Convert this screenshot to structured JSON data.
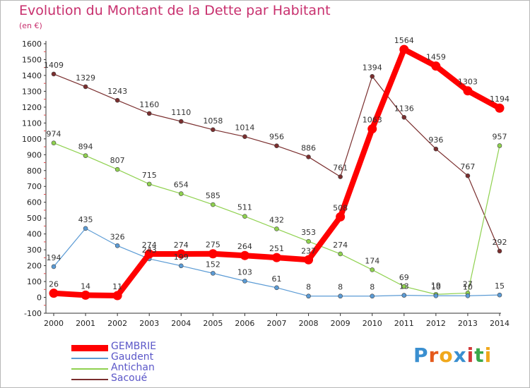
{
  "header": {
    "title": "Evolution du Montant de la Dette par Habitant",
    "unit": "(en €)"
  },
  "logo": {
    "text": "Proxiti",
    "colors": [
      "#3a8fd0",
      "#e55a1c",
      "#f0a81c",
      "#3a8fd0",
      "#d23a3a",
      "#3aa84a",
      "#f0a81c"
    ]
  },
  "chart_data": {
    "type": "line",
    "title": "Evolution du Montant de la Dette par Habitant",
    "ylabel": "(en €)",
    "x": [
      2000,
      2001,
      2002,
      2003,
      2004,
      2005,
      2006,
      2007,
      2008,
      2009,
      2010,
      2011,
      2012,
      2013,
      2014
    ],
    "ylim": [
      -100,
      1600
    ],
    "yticks": [
      -100,
      0,
      100,
      200,
      300,
      400,
      500,
      600,
      700,
      800,
      900,
      1000,
      1100,
      1200,
      1300,
      1400,
      1500,
      1600
    ],
    "grid": false,
    "legend_position": "bottom-left",
    "series": [
      {
        "name": "GEMBRIE",
        "color": "#ff0000",
        "width": 8,
        "marker": 6,
        "values": [
          26,
          14,
          11,
          274,
          274,
          275,
          264,
          251,
          237,
          508,
          1063,
          1564,
          1459,
          1303,
          1194
        ],
        "labels": [
          "26",
          "14",
          "11",
          "274",
          "274",
          "275",
          "264",
          "251",
          "237",
          "508",
          "1063",
          "1564",
          "1459",
          "1303",
          "1194"
        ]
      },
      {
        "name": "Gaudent",
        "color": "#5b9bd5",
        "width": 1.2,
        "marker": 3,
        "values": [
          194,
          435,
          326,
          243,
          199,
          152,
          103,
          61,
          8,
          8,
          8,
          13,
          10,
          10,
          15
        ],
        "labels": [
          "194",
          "435",
          "326",
          "243",
          "199",
          "152",
          "103",
          "61",
          "8",
          "8",
          "8",
          "13",
          "10",
          "10",
          "15"
        ]
      },
      {
        "name": "Antichan",
        "color": "#8fd14f",
        "width": 1.2,
        "marker": 3,
        "values": [
          974,
          894,
          807,
          715,
          654,
          585,
          511,
          432,
          353,
          274,
          174,
          69,
          19,
          27,
          957
        ],
        "labels": [
          "974",
          "894",
          "807",
          "715",
          "654",
          "585",
          "511",
          "432",
          "353",
          "274",
          "174",
          "69",
          "19",
          "27",
          "957"
        ]
      },
      {
        "name": "Sacoué",
        "color": "#7a2e2e",
        "width": 1.2,
        "marker": 3,
        "values": [
          1409,
          1329,
          1243,
          1160,
          1110,
          1058,
          1014,
          956,
          886,
          761,
          1394,
          1136,
          936,
          767,
          292
        ],
        "labels": [
          "1409",
          "1329",
          "1243",
          "1160",
          "1110",
          "1058",
          "1014",
          "956",
          "886",
          "761",
          "1394",
          "1136",
          "936",
          "767",
          "292"
        ]
      }
    ]
  }
}
